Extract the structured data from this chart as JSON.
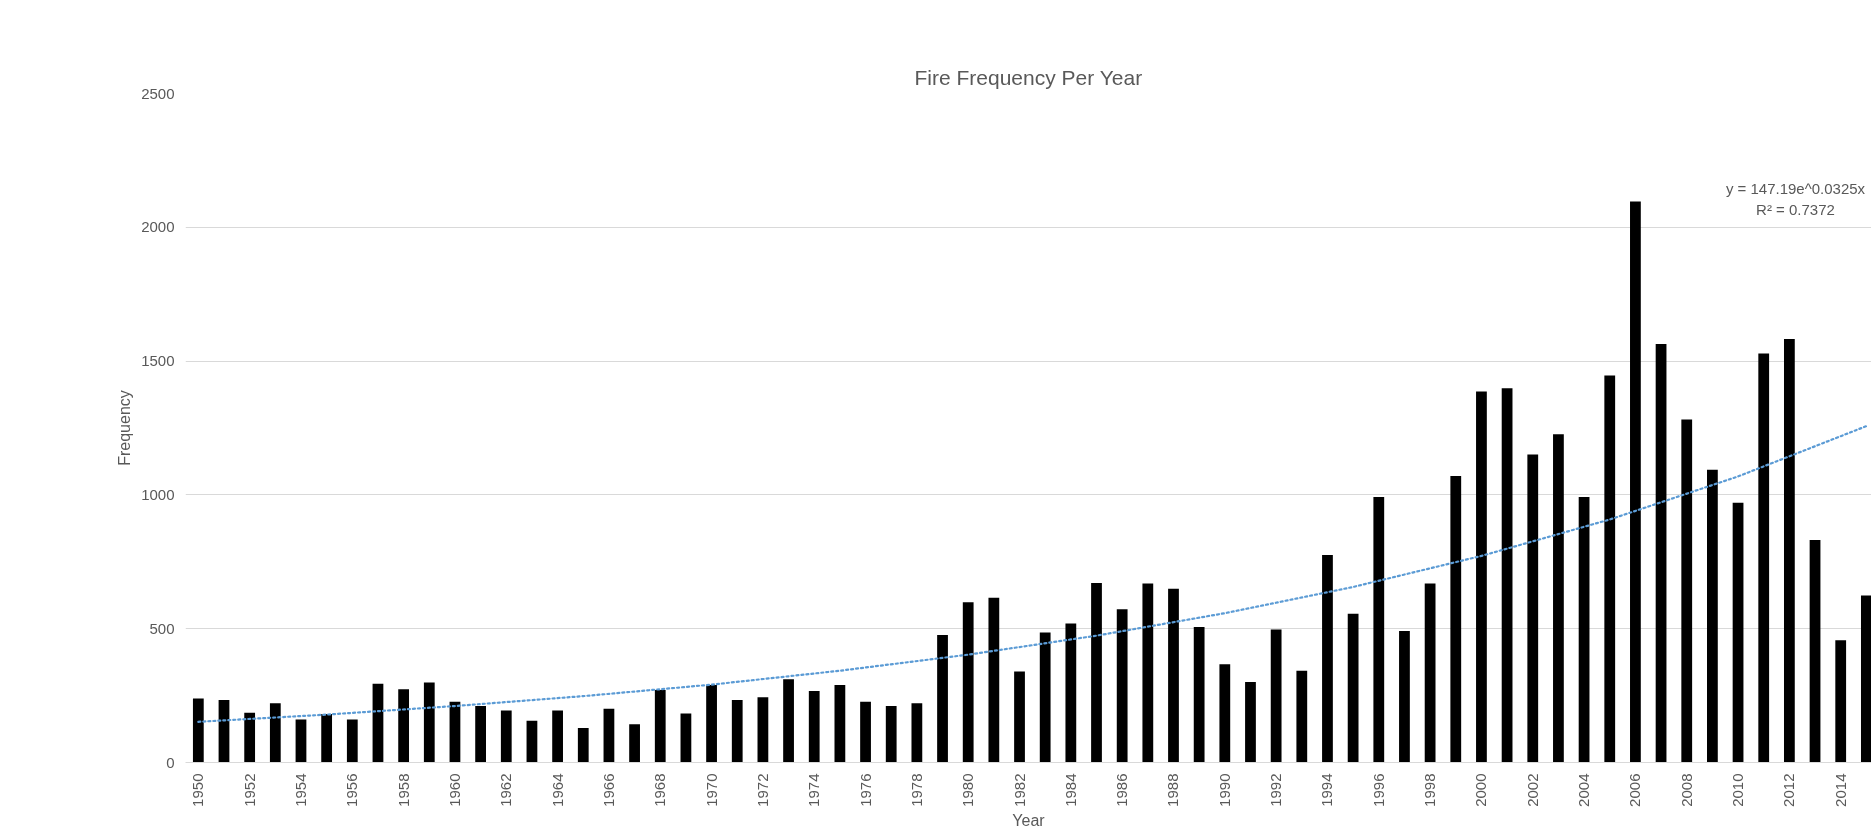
{
  "chart_data": {
    "type": "bar",
    "title": "Fire Frequency Per Year",
    "xlabel": "Year",
    "ylabel": "Frequency",
    "x": [
      1950,
      1951,
      1952,
      1953,
      1954,
      1955,
      1956,
      1957,
      1958,
      1959,
      1960,
      1961,
      1962,
      1963,
      1964,
      1965,
      1966,
      1967,
      1968,
      1969,
      1970,
      1971,
      1972,
      1973,
      1974,
      1975,
      1976,
      1977,
      1978,
      1979,
      1980,
      1981,
      1982,
      1983,
      1984,
      1985,
      1986,
      1987,
      1988,
      1989,
      1990,
      1991,
      1992,
      1993,
      1994,
      1995,
      1996,
      1997,
      1998,
      1999,
      2000,
      2001,
      2002,
      2003,
      2004,
      2005,
      2006,
      2007,
      2008,
      2009,
      2010,
      2011,
      2012,
      2013,
      2014,
      2015
    ],
    "xlim": [
      1949.5,
      2015.2
    ],
    "xticks": [
      1950,
      1952,
      1954,
      1956,
      1958,
      1960,
      1962,
      1964,
      1966,
      1968,
      1970,
      1972,
      1974,
      1976,
      1978,
      1980,
      1982,
      1984,
      1986,
      1988,
      1990,
      1992,
      1994,
      1996,
      1998,
      2000,
      2002,
      2004,
      2006,
      2008,
      2010,
      2012,
      2014
    ],
    "ylim": [
      0,
      2500
    ],
    "yticks": [
      0,
      500,
      1000,
      1500,
      2000,
      2500
    ],
    "grid": "y",
    "series": [
      {
        "color": "#000000",
        "values": [
          239,
          234,
          186,
          221,
          161,
          181,
          161,
          294,
          274,
          299,
          227,
          211,
          194,
          156,
          194,
          129,
          201,
          143,
          271,
          183,
          290,
          234,
          244,
          311,
          267,
          290,
          227,
          211,
          221,
          476,
          599,
          616,
          340,
          486,
          519,
          671,
          573,
          669,
          649,
          506,
          367,
          301,
          497,
          343,
          775,
          556,
          992,
          491,
          669,
          1071,
          1386,
          1399,
          1151,
          1227,
          992,
          1446,
          2096,
          1564,
          1282,
          1094,
          971,
          1528,
          1583,
          831,
          457,
          624
        ]
      },
      {
        "type": "line",
        "color": "#5b9bd5",
        "line_style": "dotted",
        "x": [
          1950,
          1955,
          1960,
          1965,
          1970,
          1975,
          1980,
          1985,
          1990,
          1995,
          2000,
          2005,
          2010,
          2015
        ],
        "values": [
          152,
          179,
          211,
          248,
          291,
          343,
          403,
          474,
          558,
          656,
          772,
          908,
          1069,
          1257
        ]
      }
    ],
    "annotations": [
      "y = 147.19e^0.0325x",
      "R² = 0.7372"
    ]
  }
}
